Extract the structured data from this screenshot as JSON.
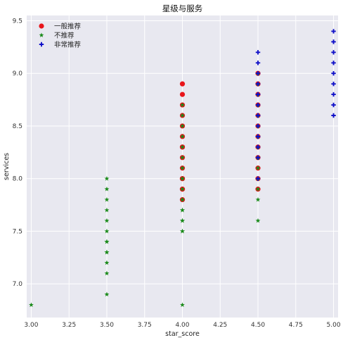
{
  "chart_data": {
    "type": "scatter",
    "title": "星级与服务",
    "xlabel": "star_score",
    "ylabel": "services",
    "xlim": [
      2.97,
      5.03
    ],
    "ylim": [
      6.68,
      9.55
    ],
    "xticks": [
      3.0,
      3.25,
      3.5,
      3.75,
      4.0,
      4.25,
      4.5,
      4.75,
      5.0
    ],
    "xtick_labels": [
      "3.00",
      "3.25",
      "3.50",
      "3.75",
      "4.00",
      "4.25",
      "4.50",
      "4.75",
      "5.00"
    ],
    "yticks": [
      7.0,
      7.5,
      8.0,
      8.5,
      9.0,
      9.5
    ],
    "ytick_labels": [
      "7.0",
      "7.5",
      "8.0",
      "8.5",
      "9.0",
      "9.5"
    ],
    "grid": true,
    "background_color": "#e8e8f0",
    "legend_position": "top-left",
    "series": [
      {
        "name": "一般推荐",
        "marker": "circle",
        "color": "#e8151b",
        "x": [
          4.0,
          4.0,
          4.0,
          4.0,
          4.0,
          4.0,
          4.0,
          4.0,
          4.0,
          4.0,
          4.0,
          4.0,
          4.0,
          4.0,
          4.0,
          4.5,
          4.5,
          4.5,
          4.5,
          4.5,
          4.5,
          4.5,
          4.5,
          4.5,
          4.5,
          4.5,
          4.5
        ],
        "y": [
          7.8,
          7.9,
          8.0,
          8.1,
          8.2,
          8.3,
          8.4,
          8.5,
          8.6,
          8.7,
          8.8,
          8.9,
          7.9,
          8.0,
          8.3,
          7.9,
          8.0,
          8.1,
          8.2,
          8.3,
          8.4,
          8.5,
          8.6,
          8.7,
          8.8,
          8.9,
          9.0
        ]
      },
      {
        "name": "不推荐",
        "marker": "star",
        "color": "#1a8a1a",
        "x": [
          3.0,
          3.5,
          3.5,
          3.5,
          3.5,
          3.5,
          3.5,
          3.5,
          3.5,
          3.5,
          3.5,
          3.5,
          3.5,
          3.5,
          4.0,
          4.0,
          4.0,
          4.0,
          4.0,
          4.0,
          4.0,
          4.0,
          4.0,
          4.0,
          4.0,
          4.0,
          4.0,
          4.0,
          4.0,
          4.0,
          4.0,
          4.0,
          4.0,
          4.5,
          4.5,
          4.5,
          4.5,
          4.5,
          4.5,
          4.5,
          4.5,
          4.5,
          4.5,
          4.5,
          4.5,
          4.5,
          4.5,
          4.5
        ],
        "y": [
          6.8,
          6.9,
          7.1,
          7.2,
          7.3,
          7.4,
          7.5,
          7.6,
          7.7,
          7.8,
          7.9,
          8.0,
          7.3,
          7.4,
          6.8,
          7.5,
          7.6,
          7.7,
          7.8,
          7.9,
          8.0,
          8.1,
          8.2,
          8.3,
          8.4,
          8.5,
          8.6,
          8.7,
          7.5,
          7.6,
          7.7,
          7.8,
          8.0,
          7.6,
          7.8,
          7.9,
          8.0,
          8.1,
          8.2,
          8.3,
          8.4,
          8.5,
          8.6,
          8.7,
          8.8,
          8.9,
          9.0,
          8.2
        ]
      },
      {
        "name": "非常推荐",
        "marker": "plus",
        "color": "#1010c8",
        "x": [
          4.5,
          4.5,
          4.5,
          4.5,
          4.5,
          4.5,
          4.5,
          4.5,
          4.5,
          4.5,
          4.5,
          4.5,
          4.5,
          4.5,
          4.5,
          5.0,
          5.0,
          5.0,
          5.0,
          5.0,
          5.0,
          5.0,
          5.0,
          5.0
        ],
        "y": [
          8.0,
          8.2,
          8.3,
          8.4,
          8.5,
          8.6,
          8.7,
          8.8,
          8.9,
          9.0,
          9.1,
          9.2,
          8.4,
          8.6,
          8.8,
          8.6,
          8.7,
          8.8,
          8.9,
          9.0,
          9.1,
          9.2,
          9.3,
          9.4
        ]
      }
    ]
  }
}
